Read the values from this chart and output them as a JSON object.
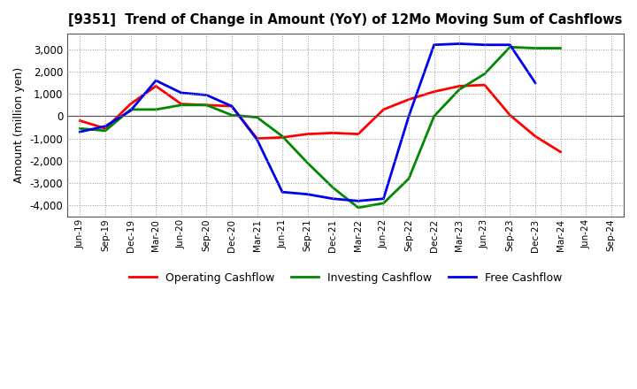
{
  "title": "[9351]  Trend of Change in Amount (YoY) of 12Mo Moving Sum of Cashflows",
  "ylabel": "Amount (million yen)",
  "x_labels": [
    "Jun-19",
    "Sep-19",
    "Dec-19",
    "Mar-20",
    "Jun-20",
    "Sep-20",
    "Dec-20",
    "Mar-21",
    "Jun-21",
    "Sep-21",
    "Dec-21",
    "Mar-22",
    "Jun-22",
    "Sep-22",
    "Dec-22",
    "Mar-23",
    "Jun-23",
    "Sep-23",
    "Dec-23",
    "Mar-24",
    "Jun-24",
    "Sep-24"
  ],
  "operating": [
    -200,
    -550,
    550,
    1350,
    550,
    500,
    450,
    -1000,
    -950,
    -800,
    -750,
    -800,
    300,
    750,
    1100,
    1350,
    1400,
    50,
    -900,
    -1600,
    null,
    null
  ],
  "investing": [
    -550,
    -650,
    300,
    300,
    500,
    500,
    50,
    -50,
    -900,
    -2100,
    -3200,
    -4100,
    -3900,
    -2800,
    0,
    1200,
    1900,
    3100,
    3050,
    3050,
    null,
    null
  ],
  "free": [
    -700,
    -450,
    250,
    1600,
    1050,
    950,
    450,
    -1050,
    -3400,
    -3500,
    -3700,
    -3800,
    -3700,
    0,
    3200,
    3250,
    3200,
    3200,
    1500,
    null,
    null,
    null
  ],
  "operating_color": "#ff0000",
  "investing_color": "#008800",
  "free_color": "#0000ee",
  "ylim": [
    -4500,
    3700
  ],
  "yticks": [
    -4000,
    -3000,
    -2000,
    -1000,
    0,
    1000,
    2000,
    3000
  ],
  "background_color": "#ffffff",
  "grid_color": "#999999",
  "legend_labels": [
    "Operating Cashflow",
    "Investing Cashflow",
    "Free Cashflow"
  ]
}
